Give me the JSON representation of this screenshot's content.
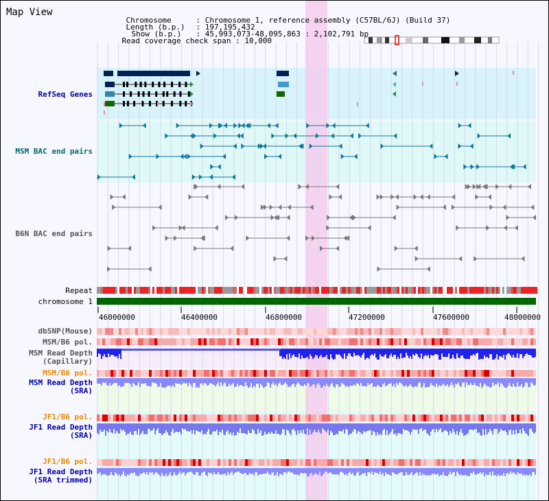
{
  "window": {
    "title": "Map View"
  },
  "info": {
    "chromosome_label": "Chromosome",
    "chromosome_value": ": Chromosome 1, reference assembly (C57BL/6J) (Build 37)",
    "length_label": "Length (b.p.)",
    "length_value": ": 197,195,432",
    "show_label": "Show (b.p.)",
    "show_value": ": 45,993,073-48,095,863 : 2,102,791 bp",
    "coverage_label": "Read coverage check span",
    "coverage_value": ": 10,000"
  },
  "tracks": {
    "refseq": "RefSeq Genes",
    "msm_bac": "MSM BAC end pairs",
    "b6n_bac": "B6N BAC end pairs",
    "repeat": "Repeat",
    "chromosome": "chromosome 1",
    "dbsnp": "dbSNP(Mouse)",
    "msm_b6_pol_1": "MSM/B6 pol.",
    "msm_depth_cap_1": "MSM Read Depth",
    "msm_depth_cap_2": "(Capillary)",
    "msm_b6_pol_2": "MSM/B6 pol.",
    "msm_depth_sra_1": "MSM Read Depth",
    "msm_depth_sra_2": "(SRA)",
    "jf1_b6_pol_1": "JF1/B6 pol.",
    "jf1_depth_sra_1": "JF1 Read Depth",
    "jf1_depth_sra_2": "(SRA)",
    "jf1_b6_pol_2": "JF1/B6 pol.",
    "jf1_depth_trim_1": "JF1 Read Depth",
    "jf1_depth_trim_2": "(SRA trimmed)"
  },
  "axis": {
    "ticks": [
      "46000000",
      "46400000",
      "46800000",
      "47200000",
      "47600000",
      "48000000"
    ]
  },
  "colors": {
    "refseq_label": "#000099",
    "msm_label": "#006677",
    "b6n_label": "#555555",
    "pol_label": "#ee8800",
    "depth_label": "#0000aa",
    "highlight": "#f5ccee",
    "chromosome_bar": "#006600",
    "depth_bar": "#2222ee",
    "sra_depth_bar": "#8888ff"
  }
}
